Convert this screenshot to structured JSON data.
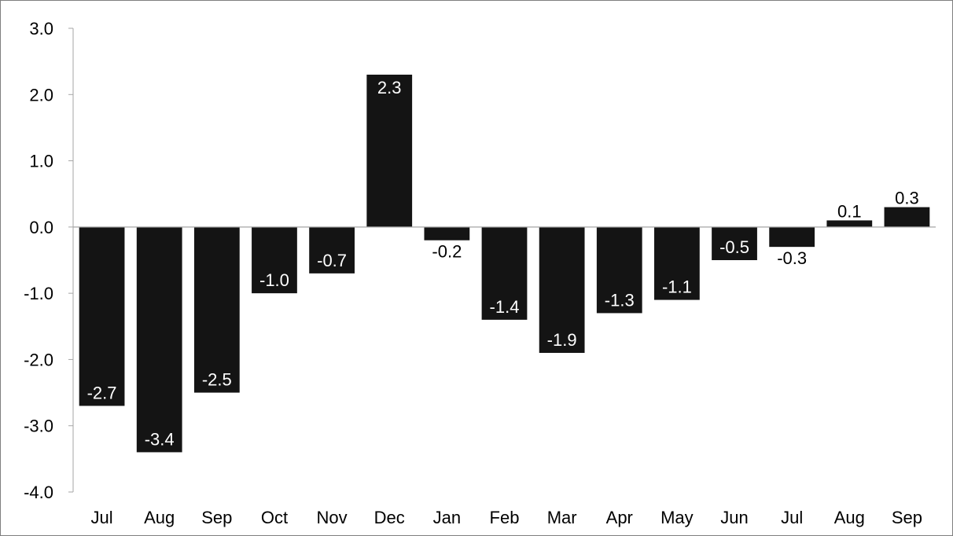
{
  "chart_data": {
    "type": "bar",
    "title": "",
    "xlabel": "",
    "ylabel": "",
    "categories": [
      "Jul",
      "Aug",
      "Sep",
      "Oct",
      "Nov",
      "Dec",
      "Jan",
      "Feb",
      "Mar",
      "Apr",
      "May",
      "Jun",
      "Jul",
      "Aug",
      "Sep"
    ],
    "values": [
      -2.7,
      -3.4,
      -2.5,
      -1.0,
      -0.7,
      2.3,
      -0.2,
      -1.4,
      -1.9,
      -1.3,
      -1.1,
      -0.5,
      -0.3,
      0.1,
      0.3
    ],
    "value_labels": [
      "-2.7",
      "-3.4",
      "-2.5",
      "-1.0",
      "-0.7",
      "2.3",
      "-0.2",
      "-1.4",
      "-1.9",
      "-1.3",
      "-1.1",
      "-0.5",
      "-0.3",
      "0.1",
      "0.3"
    ],
    "yticks": [
      3.0,
      2.0,
      1.0,
      0.0,
      -1.0,
      -2.0,
      -3.0,
      -4.0
    ],
    "ytick_labels": [
      "3.0",
      "2.0",
      "1.0",
      "0.0",
      "-1.0",
      "-2.0",
      "-3.0",
      "-4.0"
    ],
    "ylim": [
      -4.0,
      3.0
    ],
    "grid": false,
    "legend": "none",
    "colors": {
      "bar": "#141414",
      "axis": "#a6a6a6",
      "label_inside": "#ffffff",
      "label_outside": "#000000"
    }
  }
}
